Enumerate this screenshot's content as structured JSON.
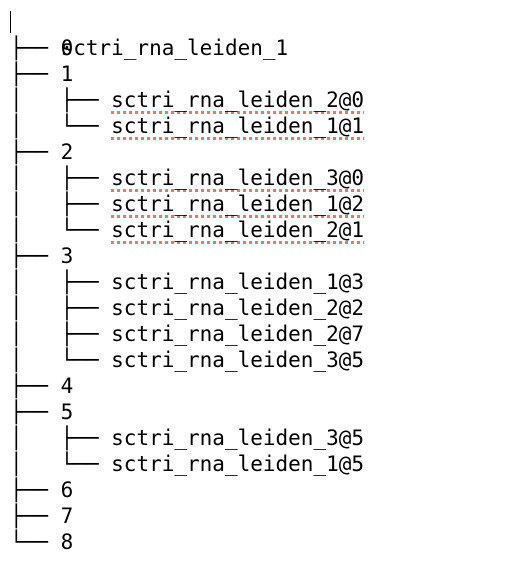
{
  "root": "sctri_rna_leiden_1",
  "spell_color": "#e8766d",
  "lines": [
    {
      "prefix": "├── ",
      "label": "0",
      "flagged": false
    },
    {
      "prefix": "├── ",
      "label": "1",
      "flagged": false
    },
    {
      "prefix": "│   ├── ",
      "label": "sctri_rna_leiden_2@0",
      "flagged": true
    },
    {
      "prefix": "│   └── ",
      "label": "sctri_rna_leiden_1@1",
      "flagged": true
    },
    {
      "prefix": "├── ",
      "label": "2",
      "flagged": false
    },
    {
      "prefix": "│   ├── ",
      "label": "sctri_rna_leiden_3@0",
      "flagged": true
    },
    {
      "prefix": "│   ├── ",
      "label": "sctri_rna_leiden_1@2",
      "flagged": true
    },
    {
      "prefix": "│   └── ",
      "label": "sctri_rna_leiden_2@1",
      "flagged": true
    },
    {
      "prefix": "├── ",
      "label": "3",
      "flagged": false
    },
    {
      "prefix": "│   ├── ",
      "label": "sctri_rna_leiden_1@3",
      "flagged": false
    },
    {
      "prefix": "│   ├── ",
      "label": "sctri_rna_leiden_2@2",
      "flagged": false
    },
    {
      "prefix": "│   ├── ",
      "label": "sctri_rna_leiden_2@7",
      "flagged": false
    },
    {
      "prefix": "│   └── ",
      "label": "sctri_rna_leiden_3@5",
      "flagged": false
    },
    {
      "prefix": "├── ",
      "label": "4",
      "flagged": false
    },
    {
      "prefix": "├── ",
      "label": "5",
      "flagged": false
    },
    {
      "prefix": "│   ├── ",
      "label": "sctri_rna_leiden_3@5",
      "flagged": false
    },
    {
      "prefix": "│   └── ",
      "label": "sctri_rna_leiden_1@5",
      "flagged": false
    },
    {
      "prefix": "├── ",
      "label": "6",
      "flagged": false
    },
    {
      "prefix": "├── ",
      "label": "7",
      "flagged": false
    },
    {
      "prefix": "└── ",
      "label": "8",
      "flagged": false
    }
  ]
}
